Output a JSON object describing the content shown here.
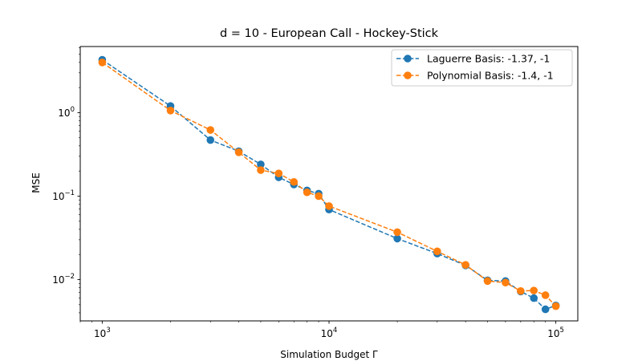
{
  "chart_data": {
    "type": "line",
    "title": "d = 10 - European Call - Hockey-Stick",
    "xlabel": "Simulation Budget Γ",
    "ylabel": "MSE",
    "xscale": "log",
    "yscale": "log",
    "xlim": [
      800,
      125000
    ],
    "ylim": [
      0.0032,
      6.2
    ],
    "grid": false,
    "legend_position": "top-right",
    "x_ticks": [
      {
        "value": 1000,
        "base": "10",
        "exp": "3"
      },
      {
        "value": 10000,
        "base": "10",
        "exp": "4"
      },
      {
        "value": 100000,
        "base": "10",
        "exp": "5"
      }
    ],
    "y_ticks": [
      {
        "value": 0.01,
        "base": "10",
        "exp": "−2"
      },
      {
        "value": 0.1,
        "base": "10",
        "exp": "−1"
      },
      {
        "value": 1,
        "base": "10",
        "exp": "0"
      }
    ],
    "x": [
      1000,
      2000,
      3000,
      4000,
      5000,
      6000,
      7000,
      8000,
      9000,
      10000,
      20000,
      30000,
      40000,
      50000,
      60000,
      70000,
      80000,
      90000,
      100000
    ],
    "series": [
      {
        "name": "Laguerre Basis: -1.37, -1",
        "color": "#1f77b4",
        "values": [
          4.3,
          1.2,
          0.47,
          0.345,
          0.24,
          0.168,
          0.138,
          0.117,
          0.107,
          0.069,
          0.031,
          0.0205,
          0.0148,
          0.0098,
          0.0096,
          0.0072,
          0.006,
          0.0044,
          0.0049
        ]
      },
      {
        "name": "Polynomial Basis: -1.4, -1",
        "color": "#ff7f0e",
        "values": [
          4.0,
          1.06,
          0.62,
          0.335,
          0.205,
          0.187,
          0.148,
          0.111,
          0.1,
          0.076,
          0.037,
          0.0218,
          0.015,
          0.0096,
          0.0092,
          0.0073,
          0.0074,
          0.0065,
          0.0048
        ]
      }
    ]
  }
}
